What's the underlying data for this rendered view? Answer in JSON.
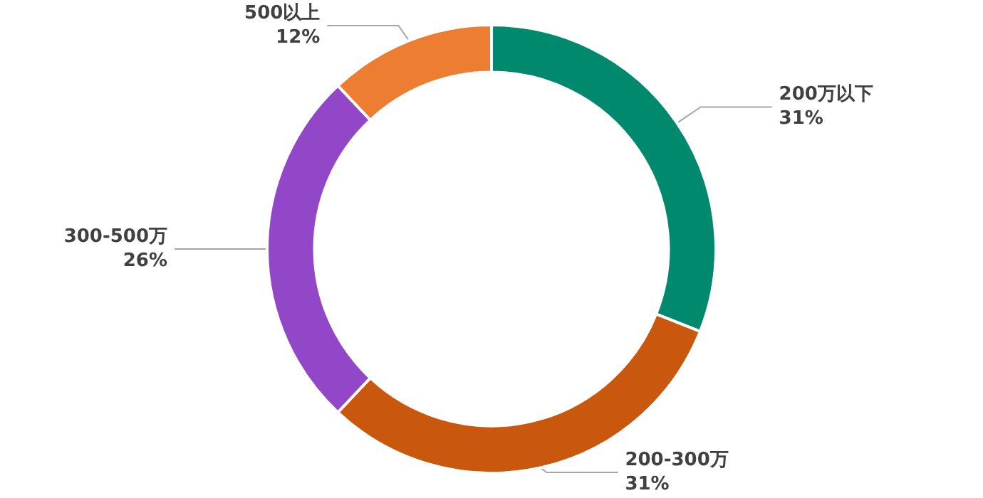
{
  "chart_data": {
    "type": "donut",
    "categories": [
      "200万以下",
      "200-300万",
      "300-500万",
      "500以上"
    ],
    "values": [
      31,
      31,
      26,
      12
    ],
    "value_labels": [
      "31%",
      "31%",
      "26%",
      "12%"
    ],
    "colors": [
      "#00896c",
      "#c9580e",
      "#9147c8",
      "#ed7d31"
    ],
    "legend": false
  }
}
